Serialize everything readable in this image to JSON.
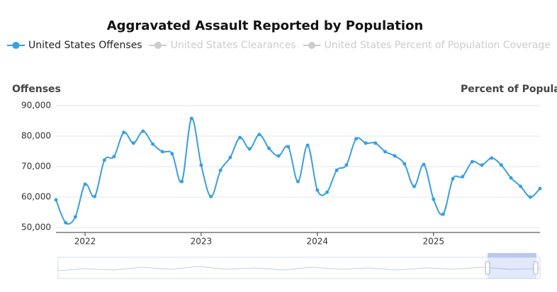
{
  "chart_data": {
    "type": "line",
    "title": "Aggravated Assault Reported by Population",
    "y_label": "Offenses",
    "y2_label": "Percent of Population",
    "x": [
      "2021-10",
      "2021-11",
      "2021-12",
      "2022-01",
      "2022-02",
      "2022-03",
      "2022-04",
      "2022-05",
      "2022-06",
      "2022-07",
      "2022-08",
      "2022-09",
      "2022-10",
      "2022-11",
      "2022-12",
      "2023-01",
      "2023-02",
      "2023-03",
      "2023-04",
      "2023-05",
      "2023-06",
      "2023-07",
      "2023-08",
      "2023-09",
      "2023-10",
      "2023-11",
      "2023-12",
      "2024-01",
      "2024-02",
      "2024-03",
      "2024-04",
      "2024-05",
      "2024-06",
      "2024-07",
      "2024-08",
      "2024-09",
      "2024-10",
      "2024-11",
      "2024-12",
      "2025-01",
      "2025-02",
      "2025-03",
      "2025-04",
      "2025-05",
      "2025-06",
      "2025-07",
      "2025-08",
      "2025-09",
      "2025-10",
      "2025-11",
      "2025-12"
    ],
    "series": [
      {
        "name": "United States Offenses",
        "color": "#3a9fe0",
        "visible": true,
        "values": [
          59100,
          51600,
          53500,
          64200,
          60200,
          72100,
          73300,
          81200,
          77700,
          81600,
          77400,
          74900,
          74200,
          65100,
          85800,
          70500,
          60200,
          68800,
          73000,
          79500,
          75800,
          80500,
          76000,
          73500,
          76500,
          65100,
          77000,
          62300,
          61600,
          68800,
          70500,
          79100,
          77700,
          77700,
          74900,
          73500,
          70900,
          63500,
          70700,
          59300,
          54400,
          66000,
          66700,
          71600,
          70500,
          72800,
          70500,
          66300,
          63500,
          60000,
          62800
        ]
      },
      {
        "name": "United States Clearances",
        "color": "#cccccc",
        "visible": false
      },
      {
        "name": "United States Percent of Population Coverage",
        "color": "#cccccc",
        "visible": false
      }
    ],
    "xticks": [
      2022,
      2023,
      2024,
      2025
    ],
    "ylim": [
      48400,
      90000
    ],
    "yticks": [
      {
        "value": 50000,
        "label": "50,000"
      },
      {
        "value": 60000,
        "label": "60,000"
      },
      {
        "value": 70000,
        "label": "70,000"
      },
      {
        "value": 80000,
        "label": "80,000"
      },
      {
        "value": 90000,
        "label": "90,000"
      }
    ],
    "grid": true
  }
}
